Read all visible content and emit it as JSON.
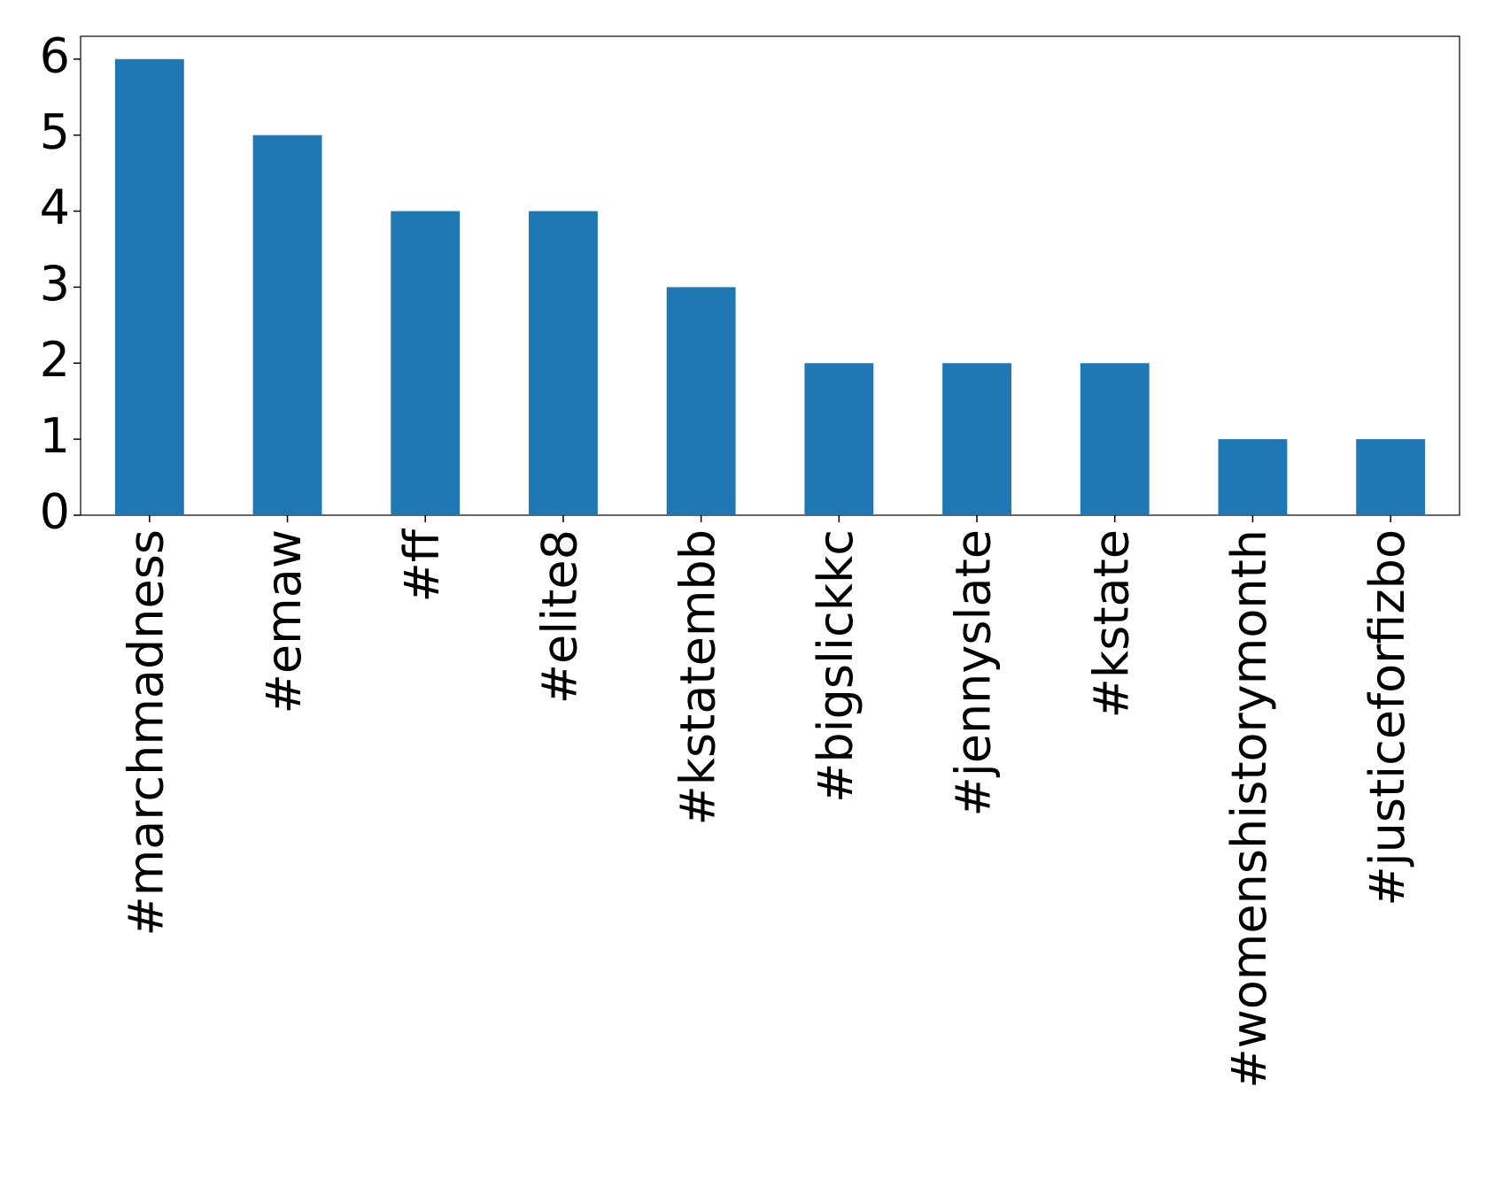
{
  "chart_data": {
    "type": "bar",
    "categories": [
      "#marchmadness",
      "#emaw",
      "#ff",
      "#elite8",
      "#kstatembb",
      "#bigslickkc",
      "#jennyslate",
      "#kstate",
      "#womenshistorymonth",
      "#justiceforfizbo"
    ],
    "values": [
      6,
      5,
      4,
      4,
      3,
      2,
      2,
      2,
      1,
      1
    ],
    "color": "#1f77b4",
    "ylim": [
      0,
      6.3
    ],
    "yticks": [
      0,
      1,
      2,
      3,
      4,
      5,
      6
    ],
    "grid": false
  }
}
